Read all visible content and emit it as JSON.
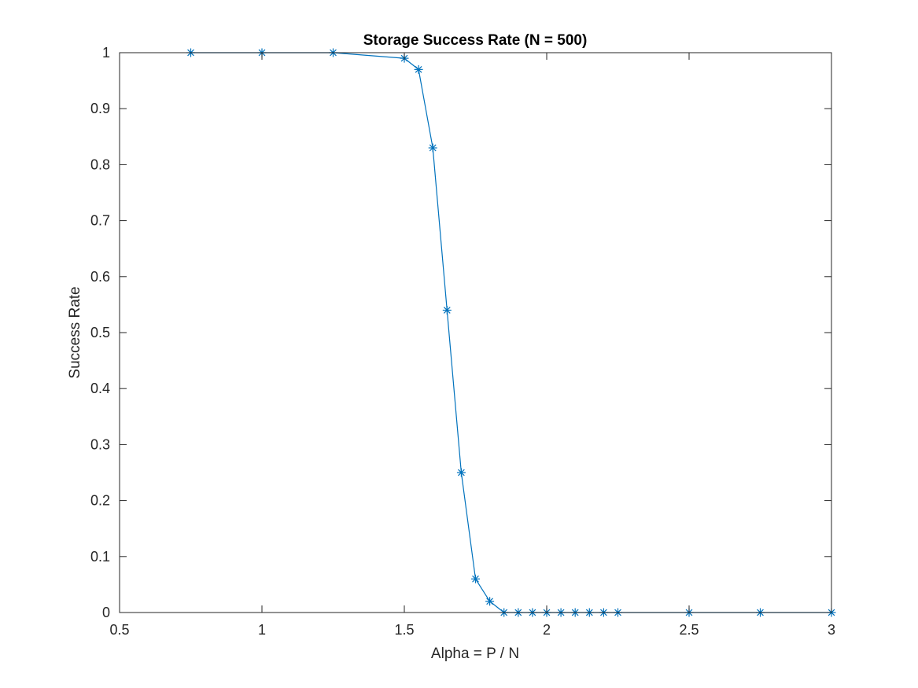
{
  "chart_data": {
    "type": "line",
    "title": "Storage Success Rate (N = 500)",
    "xlabel": "Alpha = P / N",
    "ylabel": "Success Rate",
    "xlim": [
      0.5,
      3
    ],
    "ylim": [
      0,
      1
    ],
    "xticks": [
      0.5,
      1,
      1.5,
      2,
      2.5,
      3
    ],
    "xtick_labels": [
      "0.5",
      "1",
      "1.5",
      "2",
      "2.5",
      "3"
    ],
    "yticks": [
      0,
      0.1,
      0.2,
      0.3,
      0.4,
      0.5,
      0.6,
      0.7,
      0.8,
      0.9,
      1
    ],
    "ytick_labels": [
      "0",
      "0.1",
      "0.2",
      "0.3",
      "0.4",
      "0.5",
      "0.6",
      "0.7",
      "0.8",
      "0.9",
      "1"
    ],
    "grid": false,
    "marker": "asterisk",
    "series": [
      {
        "color": "#0072BD",
        "x": [
          0.75,
          1,
          1.25,
          1.5,
          1.55,
          1.6,
          1.65,
          1.7,
          1.75,
          1.8,
          1.85,
          1.9,
          1.95,
          2,
          2.05,
          2.1,
          2.15,
          2.2,
          2.25,
          2.5,
          2.75,
          3
        ],
        "y": [
          1,
          1,
          1,
          0.99,
          0.97,
          0.83,
          0.54,
          0.25,
          0.06,
          0.02,
          0,
          0,
          0,
          0,
          0,
          0,
          0,
          0,
          0,
          0,
          0,
          0
        ]
      }
    ]
  }
}
